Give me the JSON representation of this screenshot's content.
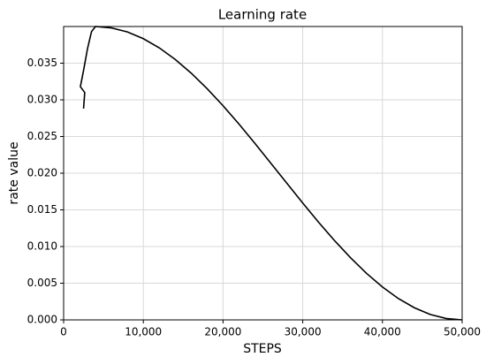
{
  "chart_data": {
    "type": "line",
    "title": "Learning rate",
    "x_label": "STEPS",
    "y_label": "rate value",
    "series": [
      {
        "name": "learning rate",
        "color": "#000000",
        "x": [
          2500,
          2650,
          2100,
          2500,
          3000,
          3500,
          4000,
          6000,
          8000,
          10000,
          12000,
          14000,
          16000,
          18000,
          20000,
          22000,
          24000,
          26000,
          28000,
          30000,
          32000,
          34000,
          36000,
          38000,
          40000,
          42000,
          44000,
          46000,
          48000,
          50000
        ],
        "values": [
          0.0288,
          0.031,
          0.0318,
          0.034,
          0.037,
          0.0393,
          0.04,
          0.03981,
          0.03926,
          0.03834,
          0.03709,
          0.03551,
          0.03365,
          0.03153,
          0.0292,
          0.0267,
          0.02407,
          0.02136,
          0.01864,
          0.01593,
          0.0133,
          0.0108,
          0.00847,
          0.00635,
          0.00449,
          0.00291,
          0.00166,
          0.00074,
          0.00019,
          0
        ]
      }
    ],
    "xlim": [
      0,
      50000
    ],
    "xticks": [
      0,
      {
        "value": 10000,
        "label": "10,000"
      },
      {
        "value": 20000,
        "label": "20,000"
      },
      {
        "value": 30000,
        "label": "30,000"
      },
      {
        "value": 40000,
        "label": "40,000"
      },
      {
        "value": 50000,
        "label": "50,000"
      }
    ],
    "ylim": [
      0,
      0.04
    ],
    "yticks": [
      {
        "value": 0,
        "label": "0.000"
      },
      0.005,
      {
        "value": 0.01,
        "label": "0.010"
      },
      0.015,
      {
        "value": 0.02,
        "label": "0.020"
      },
      0.025,
      {
        "value": 0.03,
        "label": "0.030"
      },
      0.035
    ],
    "grid": true
  }
}
